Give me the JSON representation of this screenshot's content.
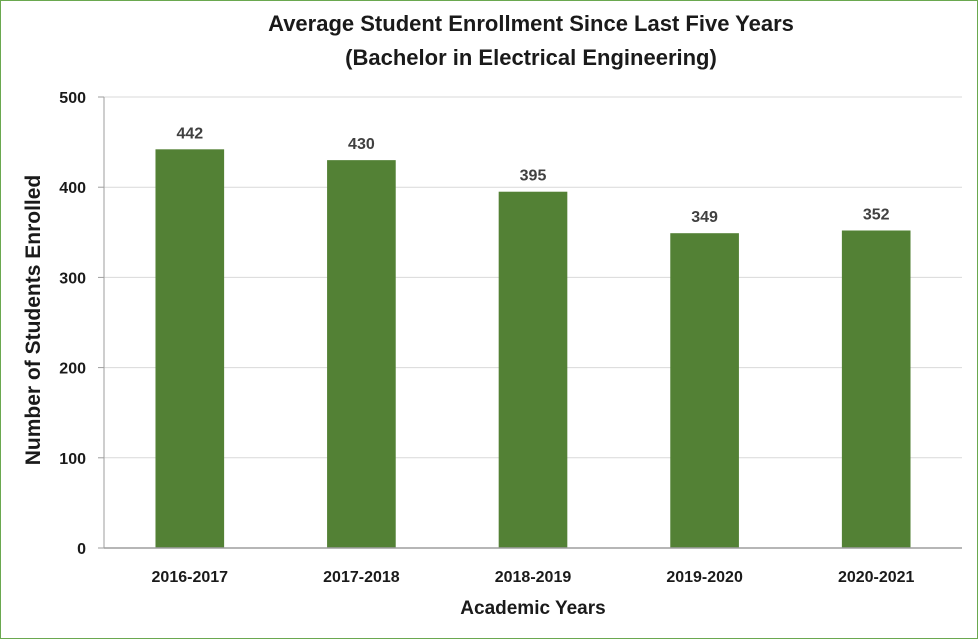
{
  "chart_data": {
    "type": "bar",
    "title": "Average Student Enrollment Since Last Five Years",
    "subtitle": "(Bachelor in Electrical Engineering)",
    "xlabel": "Academic Years",
    "ylabel": "Number of Students Enrolled",
    "categories": [
      "2016-2017",
      "2017-2018",
      "2018-2019",
      "2019-2020",
      "2020-2021"
    ],
    "values": [
      442,
      430,
      395,
      349,
      352
    ],
    "data_labels": [
      "442",
      "430",
      "395",
      "349",
      "352"
    ],
    "ylim": [
      0,
      500
    ],
    "yticks": [
      0,
      100,
      200,
      300,
      400,
      500
    ],
    "ytick_labels": [
      "0",
      "100",
      "200",
      "300",
      "400",
      "500"
    ],
    "grid": true,
    "legend": "none",
    "bar_color": "#538135",
    "frame_color": "#6aa84f"
  }
}
